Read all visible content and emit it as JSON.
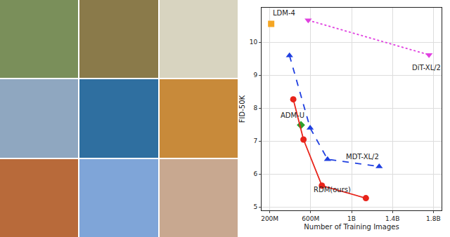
{
  "chart_data": {
    "type": "line",
    "x_label": "Number of Training Images",
    "y_label": "FID-50K",
    "xlim": [
      120000000,
      1880000000
    ],
    "xticks": [
      {
        "value": 200000000,
        "label": "200M"
      },
      {
        "value": 600000000,
        "label": "600M"
      },
      {
        "value": 1000000000,
        "label": "1B"
      },
      {
        "value": 1400000000,
        "label": "1.4B"
      },
      {
        "value": 1800000000,
        "label": "1.8B"
      }
    ],
    "ylim": [
      4.9,
      11.05
    ],
    "yticks": [
      5,
      6,
      7,
      8,
      9,
      10
    ],
    "grid": true,
    "series": [
      {
        "name": "LDM-4",
        "color": "#f5a623",
        "marker": "square",
        "line_style": "none",
        "x": [
          214000000
        ],
        "values": [
          10.56
        ]
      },
      {
        "name": "DiT-XL/2",
        "color": "#e040e0",
        "marker": "triangle-down",
        "line_style": "dotted",
        "x": [
          576000000,
          1757000000
        ],
        "values": [
          10.67,
          9.62
        ]
      },
      {
        "name": "ADM-U",
        "color": "#2ca02c",
        "marker": "diamond",
        "line_style": "none",
        "x": [
          505000000
        ],
        "values": [
          7.49
        ]
      },
      {
        "name": "MDT-XL/2",
        "color": "#1f3fe0",
        "marker": "triangle-up",
        "line_style": "dashed",
        "x": [
          393000000,
          595000000,
          765000000,
          1270000000
        ],
        "values": [
          9.6,
          7.4,
          6.45,
          6.23
        ]
      },
      {
        "name": "RDM(ours)",
        "color": "#e8231a",
        "marker": "circle",
        "line_style": "solid",
        "x": [
          430000000,
          530000000,
          710000000,
          1140000000
        ],
        "values": [
          8.27,
          7.05,
          5.65,
          5.27
        ]
      }
    ]
  }
}
